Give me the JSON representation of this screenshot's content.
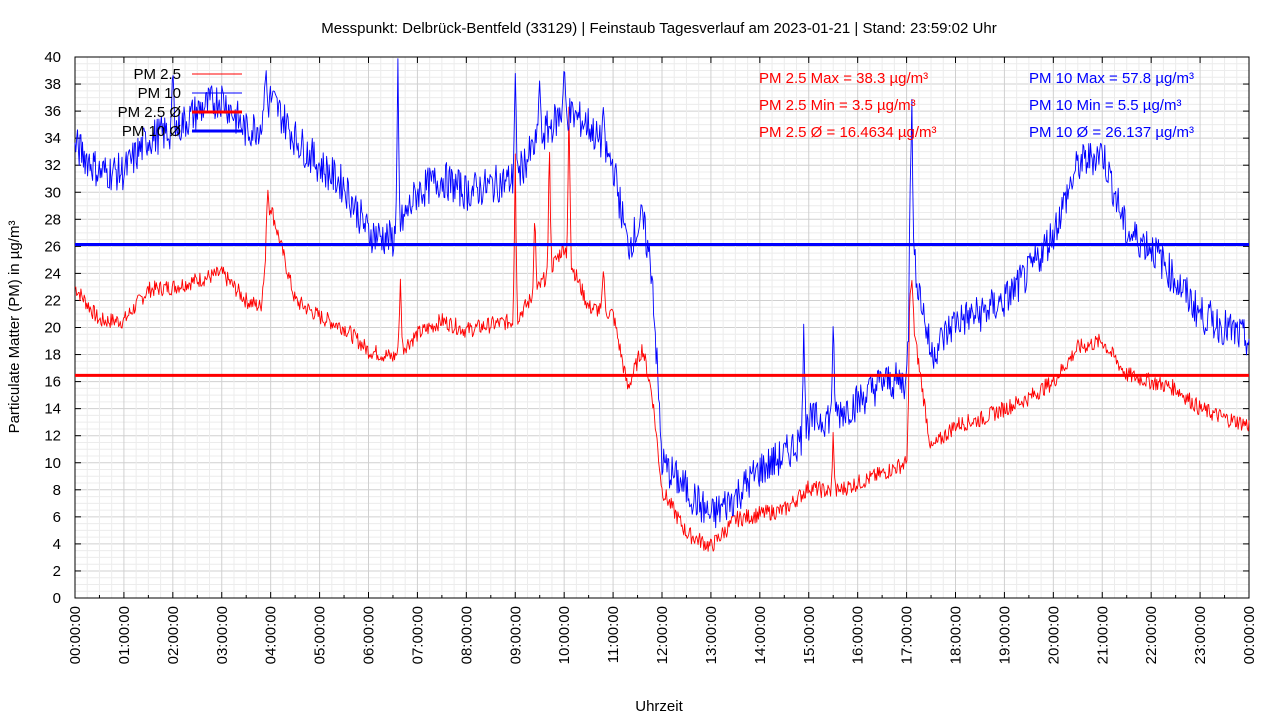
{
  "chart_data": {
    "type": "line",
    "title": "Messpunkt: Delbrück-Bentfeld (33129) | Feinstaub Tagesverlauf am 2023-01-21 | Stand: 23:59:02 Uhr",
    "xlabel": "Uhrzeit",
    "ylabel": "Particulate Matter (PM) in µg/m³",
    "ylim": [
      0,
      40
    ],
    "yticks": [
      "0",
      "2",
      "4",
      "6",
      "8",
      "10",
      "12",
      "14",
      "16",
      "18",
      "20",
      "22",
      "24",
      "26",
      "28",
      "30",
      "32",
      "34",
      "36",
      "38",
      "40"
    ],
    "xlim": [
      "00:00:00",
      "24:00:00"
    ],
    "xticks": [
      "00:00:00",
      "01:00:00",
      "02:00:00",
      "03:00:00",
      "04:00:00",
      "05:00:00",
      "06:00:00",
      "07:00:00",
      "08:00:00",
      "09:00:00",
      "10:00:00",
      "11:00:00",
      "12:00:00",
      "13:00:00",
      "14:00:00",
      "15:00:00",
      "16:00:00",
      "17:00:00",
      "18:00:00",
      "19:00:00",
      "20:00:00",
      "21:00:00",
      "22:00:00",
      "23:00:00",
      "00:00:00"
    ],
    "grid": true,
    "legend_position": "top-left",
    "legend": [
      "PM 2.5",
      "PM 10",
      "PM 2.5 Ø",
      "PM 10 Ø"
    ],
    "annotations": {
      "pm25_max": "PM 2.5 Max = 38.3 µg/m³",
      "pm25_min": "PM 2.5 Min = 3.5 µg/m³",
      "pm25_avg": "PM 2.5 Ø = 16.4634 µg/m³",
      "pm10_max": "PM 10 Max = 57.8 µg/m³",
      "pm10_min": "PM 10 Min = 5.5 µg/m³",
      "pm10_avg": "PM 10 Ø = 26.137 µg/m³"
    },
    "x_hours": [
      0,
      0.5,
      1,
      1.5,
      2,
      2.5,
      3,
      3.5,
      3.8,
      4,
      4.5,
      5,
      5.5,
      6,
      6.5,
      7,
      7.5,
      8,
      8.5,
      9,
      9.5,
      10,
      10.5,
      11,
      11.3,
      11.6,
      11.8,
      12,
      12.5,
      13,
      13.5,
      14,
      14.5,
      14.9,
      15,
      15.5,
      16,
      16.5,
      17,
      17.1,
      17.5,
      18,
      18.5,
      19,
      19.5,
      20,
      20.5,
      21,
      21.5,
      22,
      22.5,
      23,
      23.5,
      24
    ],
    "series": [
      {
        "name": "PM 2.5",
        "color": "#ff0000",
        "values": [
          23,
          20.5,
          20.5,
          22.8,
          23,
          23.5,
          24,
          22,
          21.5,
          29,
          22,
          20.8,
          20,
          18.3,
          17.8,
          19.5,
          20.5,
          19.8,
          20.2,
          20.5,
          23,
          26,
          21.5,
          21,
          15.5,
          18.5,
          15,
          8,
          4.8,
          3.8,
          5.8,
          6.2,
          6.5,
          7.8,
          8.2,
          7.8,
          8.5,
          9.2,
          10,
          21,
          11,
          12.8,
          13.2,
          14,
          14.8,
          16,
          18.5,
          19,
          16.5,
          16,
          15.5,
          14,
          13.3,
          12.8
        ]
      },
      {
        "name": "PM 10",
        "color": "#0000ff",
        "values": [
          33.5,
          31.5,
          31.5,
          34,
          34.5,
          36,
          37,
          34.5,
          35,
          37,
          34,
          32,
          30.5,
          27,
          26.5,
          30,
          31,
          30,
          30.5,
          31,
          34,
          36,
          35,
          32,
          26,
          28,
          24,
          10,
          8,
          6,
          7.5,
          9.5,
          10.5,
          12,
          13,
          13.5,
          14.5,
          16,
          16,
          26,
          18,
          20.5,
          21,
          22,
          24,
          27,
          32,
          33,
          27,
          26,
          23.5,
          21,
          20,
          19
        ]
      },
      {
        "name": "PM 2.5 Ø",
        "color": "#ff0000",
        "value": 16.4634
      },
      {
        "name": "PM 10 Ø",
        "color": "#0000ff",
        "value": 26.137
      }
    ],
    "spikes": [
      {
        "series": "PM 2.5",
        "points": [
          [
            3.95,
            31.5
          ],
          [
            6.65,
            24.5
          ],
          [
            9.0,
            36
          ],
          [
            9.4,
            29
          ],
          [
            9.7,
            35
          ],
          [
            10.1,
            38.3
          ],
          [
            10.8,
            26
          ],
          [
            15.5,
            13
          ],
          [
            17.1,
            25
          ]
        ]
      },
      {
        "series": "PM 10",
        "points": [
          [
            2.0,
            40
          ],
          [
            3.9,
            40
          ],
          [
            6.6,
            40
          ],
          [
            9.0,
            40
          ],
          [
            9.5,
            40
          ],
          [
            10.0,
            40
          ],
          [
            10.8,
            37
          ],
          [
            14.9,
            23
          ],
          [
            15.5,
            21.5
          ],
          [
            17.1,
            40
          ]
        ]
      }
    ]
  }
}
